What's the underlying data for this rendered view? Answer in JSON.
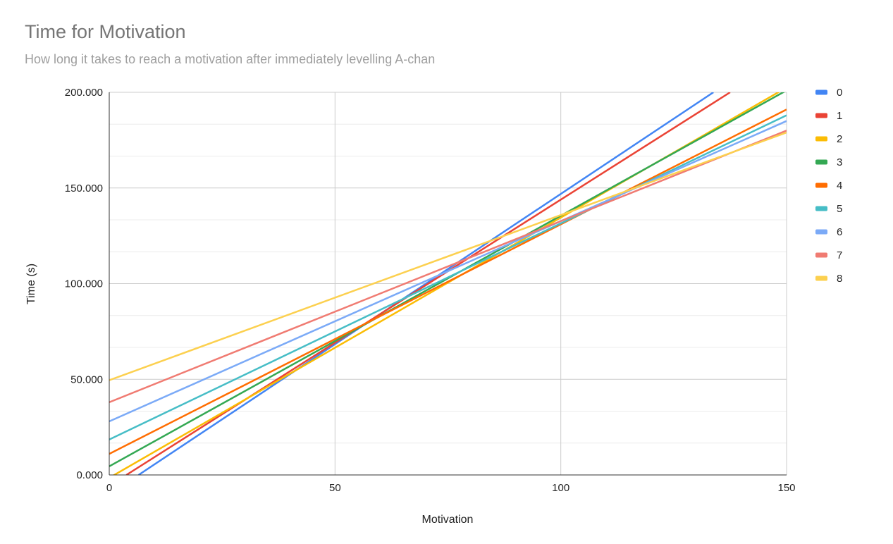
{
  "chart_data": {
    "type": "line",
    "title": "Time for Motivation",
    "subtitle": "How long it takes to reach a motivation after immediately levelling A-chan",
    "xlabel": "Motivation",
    "ylabel": "Time (s)",
    "xlim": [
      0,
      150
    ],
    "ylim": [
      0,
      200
    ],
    "x_ticks": [
      0,
      50,
      100,
      150
    ],
    "x_tick_labels": [
      "0",
      "50",
      "100",
      "150"
    ],
    "y_ticks": [
      0,
      50,
      100,
      150,
      200
    ],
    "y_tick_labels": [
      "0.000",
      "50.000",
      "100.000",
      "150.000",
      "200.000"
    ],
    "grid": true,
    "legend_position": "right",
    "series": [
      {
        "name": "0",
        "color": "#4285F4",
        "x": [
          6.5,
          133.8
        ],
        "y": [
          0,
          200
        ]
      },
      {
        "name": "1",
        "color": "#EA4335",
        "x": [
          3.8,
          137.5
        ],
        "y": [
          0,
          200
        ]
      },
      {
        "name": "2",
        "color": "#FBBC04",
        "x": [
          0,
          150
        ],
        "y": [
          -1.5,
          202.5
        ]
      },
      {
        "name": "3",
        "color": "#34A853",
        "x": [
          0,
          150
        ],
        "y": [
          4.5,
          201
        ]
      },
      {
        "name": "4",
        "color": "#FF6D01",
        "x": [
          0,
          150
        ],
        "y": [
          11,
          191
        ]
      },
      {
        "name": "5",
        "color": "#46BDC6",
        "x": [
          0,
          150
        ],
        "y": [
          18.5,
          188
        ]
      },
      {
        "name": "6",
        "color": "#7BAAF7",
        "x": [
          0,
          150
        ],
        "y": [
          28,
          185
        ]
      },
      {
        "name": "7",
        "color": "#F07B72",
        "x": [
          0,
          150
        ],
        "y": [
          38,
          180
        ]
      },
      {
        "name": "8",
        "color": "#FCD04F",
        "x": [
          0,
          150
        ],
        "y": [
          49.5,
          179
        ]
      }
    ]
  }
}
